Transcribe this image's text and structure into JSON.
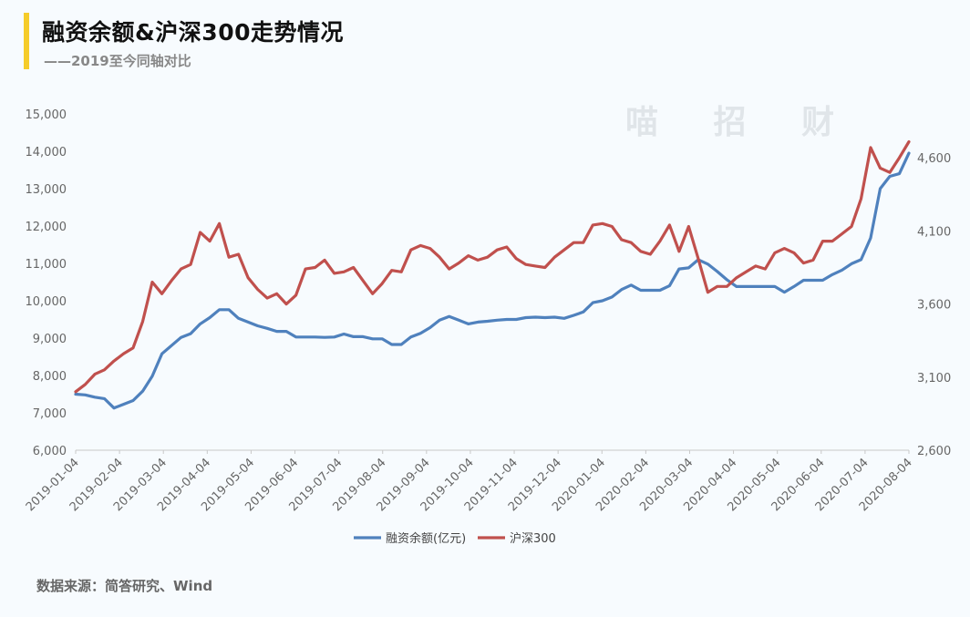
{
  "header": {
    "title": "融资余额&沪深300走势情况",
    "subtitle": "——2019至今同轴对比"
  },
  "footer": {
    "source": "数据来源：简答研究、Wind"
  },
  "watermark": "喵 招 财",
  "colors": {
    "accent": "#f5cc2a",
    "series1": "#4f81bd",
    "series2": "#c0504d"
  },
  "chart_data": {
    "type": "line",
    "title": "融资余额&沪深300走势情况",
    "legend": [
      "融资余额(亿元)",
      "沪深300"
    ],
    "legend_position": "bottom",
    "x_tick_labels": [
      "2019-01-04",
      "2019-02-04",
      "2019-03-04",
      "2019-04-04",
      "2019-05-04",
      "2019-06-04",
      "2019-07-04",
      "2019-08-04",
      "2019-09-04",
      "2019-10-04",
      "2019-11-04",
      "2019-12-04",
      "2020-01-04",
      "2020-02-04",
      "2020-03-04",
      "2020-04-04",
      "2020-05-04",
      "2020-06-04",
      "2020-07-04",
      "2020-08-04"
    ],
    "y_left": {
      "min": 6000,
      "max": 15000,
      "ticks": [
        "6,000",
        "7,000",
        "8,000",
        "9,000",
        "10,000",
        "11,000",
        "12,000",
        "13,000",
        "14,000",
        "15,000"
      ]
    },
    "y_right": {
      "min": 2600,
      "max": 4900,
      "ticks": [
        "2,600",
        "3,100",
        "3,600",
        "4,100",
        "4,600"
      ]
    },
    "grid": false,
    "series": [
      {
        "name": "融资余额(亿元)",
        "axis": "left",
        "values": [
          7500,
          7480,
          7420,
          7380,
          7130,
          7230,
          7330,
          7580,
          7980,
          8580,
          8800,
          9020,
          9120,
          9380,
          9550,
          9760,
          9760,
          9530,
          9430,
          9330,
          9260,
          9180,
          9180,
          9030,
          9030,
          9030,
          9020,
          9030,
          9110,
          9040,
          9040,
          8980,
          8980,
          8830,
          8830,
          9030,
          9130,
          9280,
          9480,
          9580,
          9480,
          9380,
          9430,
          9450,
          9480,
          9500,
          9500,
          9550,
          9560,
          9550,
          9560,
          9530,
          9610,
          9700,
          9950,
          10000,
          10100,
          10300,
          10420,
          10280,
          10280,
          10280,
          10400,
          10850,
          10880,
          11100,
          10980,
          10780,
          10560,
          10380,
          10380,
          10380,
          10380,
          10380,
          10230,
          10380,
          10550,
          10550,
          10550,
          10700,
          10820,
          10990,
          11100,
          11680,
          13000,
          13330,
          13400,
          13950
        ]
      },
      {
        "name": "沪深300",
        "axis": "right",
        "values": [
          3000,
          3050,
          3120,
          3150,
          3210,
          3260,
          3300,
          3480,
          3750,
          3670,
          3760,
          3840,
          3870,
          4090,
          4030,
          4150,
          3920,
          3940,
          3780,
          3700,
          3640,
          3670,
          3600,
          3660,
          3840,
          3850,
          3900,
          3810,
          3820,
          3850,
          3760,
          3670,
          3740,
          3830,
          3820,
          3970,
          4000,
          3980,
          3920,
          3840,
          3880,
          3930,
          3900,
          3920,
          3970,
          3990,
          3910,
          3870,
          3860,
          3850,
          3920,
          3970,
          4020,
          4020,
          4140,
          4150,
          4130,
          4040,
          4020,
          3960,
          3940,
          4030,
          4140,
          3960,
          4130,
          3910,
          3680,
          3720,
          3720,
          3780,
          3820,
          3860,
          3840,
          3950,
          3980,
          3950,
          3880,
          3900,
          4030,
          4030,
          4080,
          4130,
          4320,
          4670,
          4530,
          4500,
          4600,
          4710
        ]
      }
    ]
  }
}
